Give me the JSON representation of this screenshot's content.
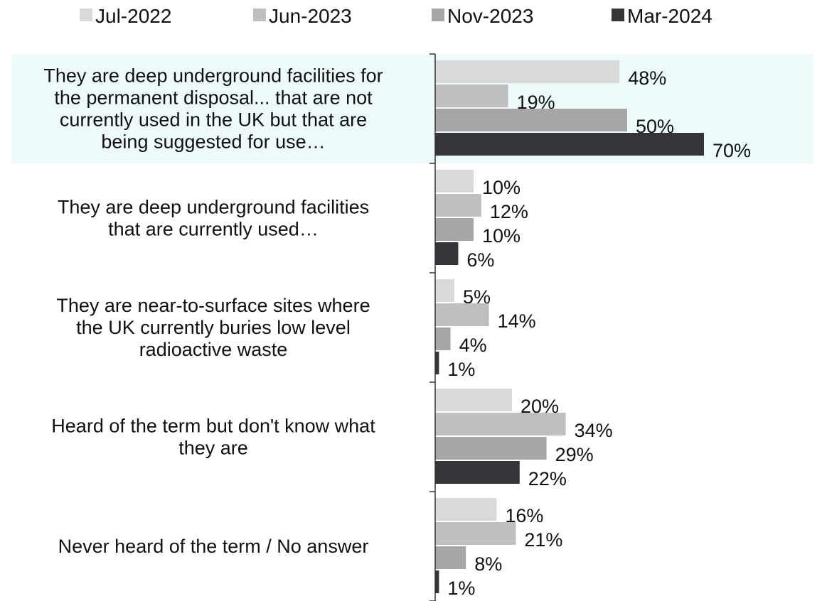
{
  "chart_data": {
    "type": "bar",
    "orientation": "horizontal",
    "categories": [
      [
        "They are deep underground facilities for",
        "the permanent disposal... that are not",
        "currently used in the UK but that are",
        "being suggested for use…"
      ],
      [
        "They are deep underground facilities",
        "that are currently used…"
      ],
      [
        "They are near-to-surface sites where",
        "the UK currently buries low level",
        "radioactive waste"
      ],
      [
        "Heard of the term but don't know what",
        "they are"
      ],
      [
        "Never heard of the term / No answer"
      ]
    ],
    "series": [
      {
        "name": "Jul-2022",
        "color": "#d9d9d9",
        "values": [
          48,
          10,
          5,
          20,
          16
        ]
      },
      {
        "name": "Jun-2023",
        "color": "#bfbfbf",
        "values": [
          19,
          12,
          14,
          34,
          21
        ]
      },
      {
        "name": "Nov-2023",
        "color": "#a6a6a6",
        "values": [
          50,
          10,
          4,
          29,
          8
        ]
      },
      {
        "name": "Mar-2024",
        "color": "#333538",
        "values": [
          70,
          6,
          1,
          22,
          1
        ]
      }
    ],
    "value_suffix": "%",
    "xlim": [
      0,
      100
    ],
    "grid": false,
    "legend": "top",
    "highlighted_category": 0,
    "highlight_color": "#eefafa"
  }
}
